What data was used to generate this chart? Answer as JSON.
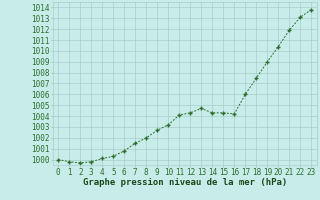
{
  "x": [
    0,
    1,
    2,
    3,
    4,
    5,
    6,
    7,
    8,
    9,
    10,
    11,
    12,
    13,
    14,
    15,
    16,
    17,
    18,
    19,
    20,
    21,
    22,
    23
  ],
  "y": [
    1000.0,
    999.8,
    999.7,
    999.8,
    1000.1,
    1000.3,
    1000.8,
    1001.5,
    1002.0,
    1002.7,
    1003.2,
    1004.1,
    1004.3,
    1004.7,
    1004.3,
    1004.3,
    1004.2,
    1006.0,
    1007.5,
    1009.0,
    1010.4,
    1011.9,
    1013.1,
    1013.8
  ],
  "line_color": "#2d6e2d",
  "marker": "+",
  "bg_color": "#c8ecea",
  "grid_color": "#a8ceca",
  "title": "Graphe pression niveau de la mer (hPa)",
  "ylabel_values": [
    1000,
    1001,
    1002,
    1003,
    1004,
    1005,
    1006,
    1007,
    1008,
    1009,
    1010,
    1011,
    1012,
    1013,
    1014
  ],
  "xlim": [
    -0.5,
    23.5
  ],
  "ylim": [
    999.5,
    1014.5
  ],
  "title_color": "#1a4a1a",
  "title_fontsize": 6.5,
  "tick_fontsize": 5.5
}
